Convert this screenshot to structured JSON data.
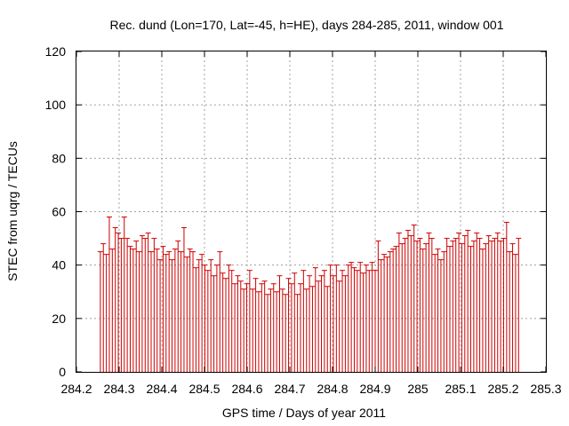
{
  "chart_data": {
    "type": "scatter",
    "title": "Rec. dund (Lon=170, Lat=-45, h=HE), days 284-285, 2011, window 001",
    "xlabel": "GPS time / Days of year 2011",
    "ylabel": "STEC from uqrg / TECUs",
    "xlim": [
      284.2,
      285.3
    ],
    "ylim": [
      0,
      120
    ],
    "xticks": [
      "284.2",
      "284.3",
      "284.4",
      "284.5",
      "284.6",
      "284.7",
      "284.8",
      "284.9",
      "285",
      "285.1",
      "285.2",
      "285.3"
    ],
    "yticks": [
      "0",
      "20",
      "40",
      "60",
      "80",
      "100",
      "120"
    ],
    "grid": true,
    "series": [
      {
        "color": "#cc0000",
        "x": [
          284.256,
          284.263,
          284.27,
          284.277,
          284.284,
          284.291,
          284.298,
          284.305,
          284.312,
          284.319,
          284.326,
          284.333,
          284.34,
          284.347,
          284.354,
          284.361,
          284.368,
          284.375,
          284.382,
          284.389,
          284.396,
          284.403,
          284.41,
          284.417,
          284.424,
          284.431,
          284.438,
          284.445,
          284.452,
          284.459,
          284.466,
          284.473,
          284.48,
          284.487,
          284.494,
          284.501,
          284.508,
          284.515,
          284.522,
          284.529,
          284.536,
          284.543,
          284.55,
          284.557,
          284.564,
          284.571,
          284.578,
          284.585,
          284.592,
          284.599,
          284.606,
          284.613,
          284.62,
          284.627,
          284.634,
          284.641,
          284.648,
          284.655,
          284.662,
          284.669,
          284.676,
          284.683,
          284.69,
          284.697,
          284.704,
          284.711,
          284.718,
          284.725,
          284.732,
          284.739,
          284.746,
          284.753,
          284.76,
          284.767,
          284.774,
          284.781,
          284.788,
          284.795,
          284.802,
          284.809,
          284.816,
          284.823,
          284.83,
          284.837,
          284.844,
          284.851,
          284.858,
          284.865,
          284.872,
          284.879,
          284.886,
          284.893,
          284.9,
          284.907,
          284.914,
          284.921,
          284.928,
          284.935,
          284.942,
          284.949,
          284.956,
          284.963,
          284.97,
          284.977,
          284.984,
          284.991,
          284.998,
          285.005,
          285.012,
          285.019,
          285.026,
          285.033,
          285.04,
          285.047,
          285.054,
          285.061,
          285.068,
          285.075,
          285.082,
          285.089,
          285.096,
          285.103,
          285.11,
          285.117,
          285.124,
          285.131,
          285.138,
          285.145,
          285.152,
          285.159,
          285.166,
          285.173,
          285.18,
          285.187,
          285.194,
          285.201,
          285.208,
          285.215,
          285.222,
          285.229,
          285.236
        ],
        "y": [
          45,
          48,
          44,
          58,
          46,
          54,
          52,
          50,
          58,
          50,
          47,
          46,
          49,
          45,
          51,
          50,
          52,
          45,
          50,
          46,
          42,
          47,
          44,
          45,
          42,
          46,
          49,
          45,
          54,
          43,
          46,
          45,
          39,
          42,
          44,
          40,
          38,
          42,
          36,
          40,
          45,
          37,
          35,
          40,
          38,
          33,
          36,
          34,
          31,
          33,
          38,
          31,
          35,
          30,
          33,
          34,
          29,
          31,
          33,
          30,
          36,
          31,
          29,
          35,
          33,
          37,
          29,
          33,
          38,
          31,
          36,
          32,
          39,
          34,
          36,
          38,
          32,
          40,
          36,
          40,
          34,
          38,
          36,
          40,
          41,
          39,
          38,
          41,
          37,
          40,
          38,
          41,
          38,
          49,
          42,
          44,
          43,
          45,
          46,
          47,
          52,
          48,
          50,
          53,
          51,
          55,
          49,
          50,
          46,
          48,
          52,
          50,
          44,
          46,
          42,
          45,
          50,
          47,
          49,
          50,
          52,
          48,
          51,
          53,
          47,
          49,
          52,
          50,
          46,
          48,
          51,
          49,
          50,
          52,
          49,
          50,
          56,
          45,
          48,
          44,
          50
        ]
      }
    ]
  }
}
